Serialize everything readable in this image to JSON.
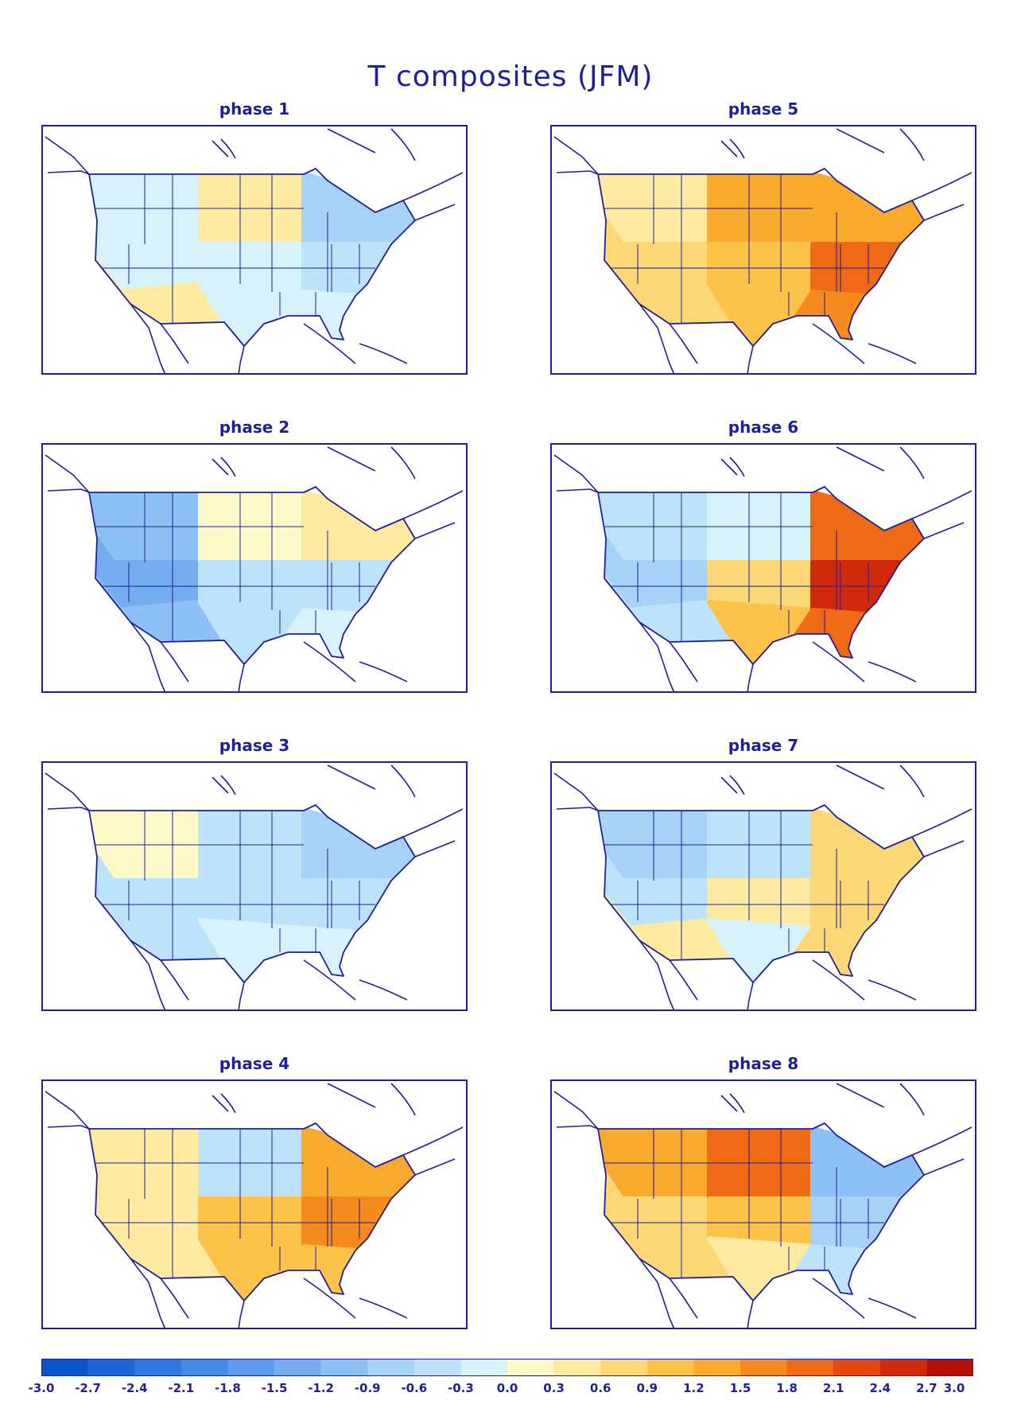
{
  "title": "T composites (JFM)",
  "panels": [
    {
      "label": "phase 1",
      "regions": {
        "nw": "-0.3",
        "w": "-0.3",
        "sw": "0.3",
        "nc": "0.3",
        "c": "-0.3",
        "sc": "-0.3",
        "ne": "-0.9",
        "e": "-0.6",
        "se": "-0.3"
      }
    },
    {
      "label": "phase 2",
      "regions": {
        "nw": "-1.2",
        "w": "-1.5",
        "sw": "-1.2",
        "nc": "0.0",
        "c": "-0.6",
        "sc": "-0.6",
        "ne": "0.3",
        "e": "-0.6",
        "se": "-0.3"
      }
    },
    {
      "label": "phase 3",
      "regions": {
        "nw": "0.0",
        "w": "-0.6",
        "sw": "-0.6",
        "nc": "-0.6",
        "c": "-0.6",
        "sc": "-0.3",
        "ne": "-0.9",
        "e": "-0.6",
        "se": "-0.3"
      }
    },
    {
      "label": "phase 4",
      "regions": {
        "nw": "0.3",
        "w": "0.3",
        "sw": "0.3",
        "nc": "-0.6",
        "c": "0.9",
        "sc": "0.9",
        "ne": "1.2",
        "e": "1.5",
        "se": "0.9"
      }
    },
    {
      "label": "phase 5",
      "regions": {
        "nw": "0.3",
        "w": "0.6",
        "sw": "0.6",
        "nc": "1.2",
        "c": "0.9",
        "sc": "0.9",
        "ne": "1.2",
        "e": "1.8",
        "se": "1.5"
      }
    },
    {
      "label": "phase 6",
      "regions": {
        "nw": "-0.6",
        "w": "-0.9",
        "sw": "-0.6",
        "nc": "-0.3",
        "c": "0.6",
        "sc": "0.9",
        "ne": "1.8",
        "e": "2.4",
        "se": "1.8"
      }
    },
    {
      "label": "phase 7",
      "regions": {
        "nw": "-0.9",
        "w": "-0.6",
        "sw": "0.3",
        "nc": "-0.6",
        "c": "0.3",
        "sc": "-0.3",
        "ne": "0.6",
        "e": "0.6",
        "se": "0.6"
      }
    },
    {
      "label": "phase 8",
      "regions": {
        "nw": "1.2",
        "w": "0.6",
        "sw": "0.6",
        "nc": "1.8",
        "c": "0.9",
        "sc": "0.3",
        "ne": "-1.2",
        "e": "-0.9",
        "se": "-0.6"
      }
    }
  ],
  "colorbar": {
    "ticks": [
      "-3.0",
      "-2.7",
      "-2.4",
      "-2.1",
      "-1.8",
      "-1.5",
      "-1.2",
      "-0.9",
      "-0.6",
      "-0.3",
      "0.0",
      "0.3",
      "0.6",
      "0.9",
      "1.2",
      "1.5",
      "1.8",
      "2.1",
      "2.4",
      "2.7",
      "3.0"
    ],
    "colors": [
      "#0a55c8",
      "#1e66d8",
      "#2f78e0",
      "#4389e6",
      "#5a9beb",
      "#74aef0",
      "#8dc0f4",
      "#a6d2f8",
      "#bde3fb",
      "#d6f2fd",
      "#fff8c8",
      "#fee9a0",
      "#fdd775",
      "#fcc24a",
      "#f9a92c",
      "#f58a1e",
      "#ee6a15",
      "#e24a10",
      "#cf2a0c",
      "#b5100a"
    ]
  }
}
